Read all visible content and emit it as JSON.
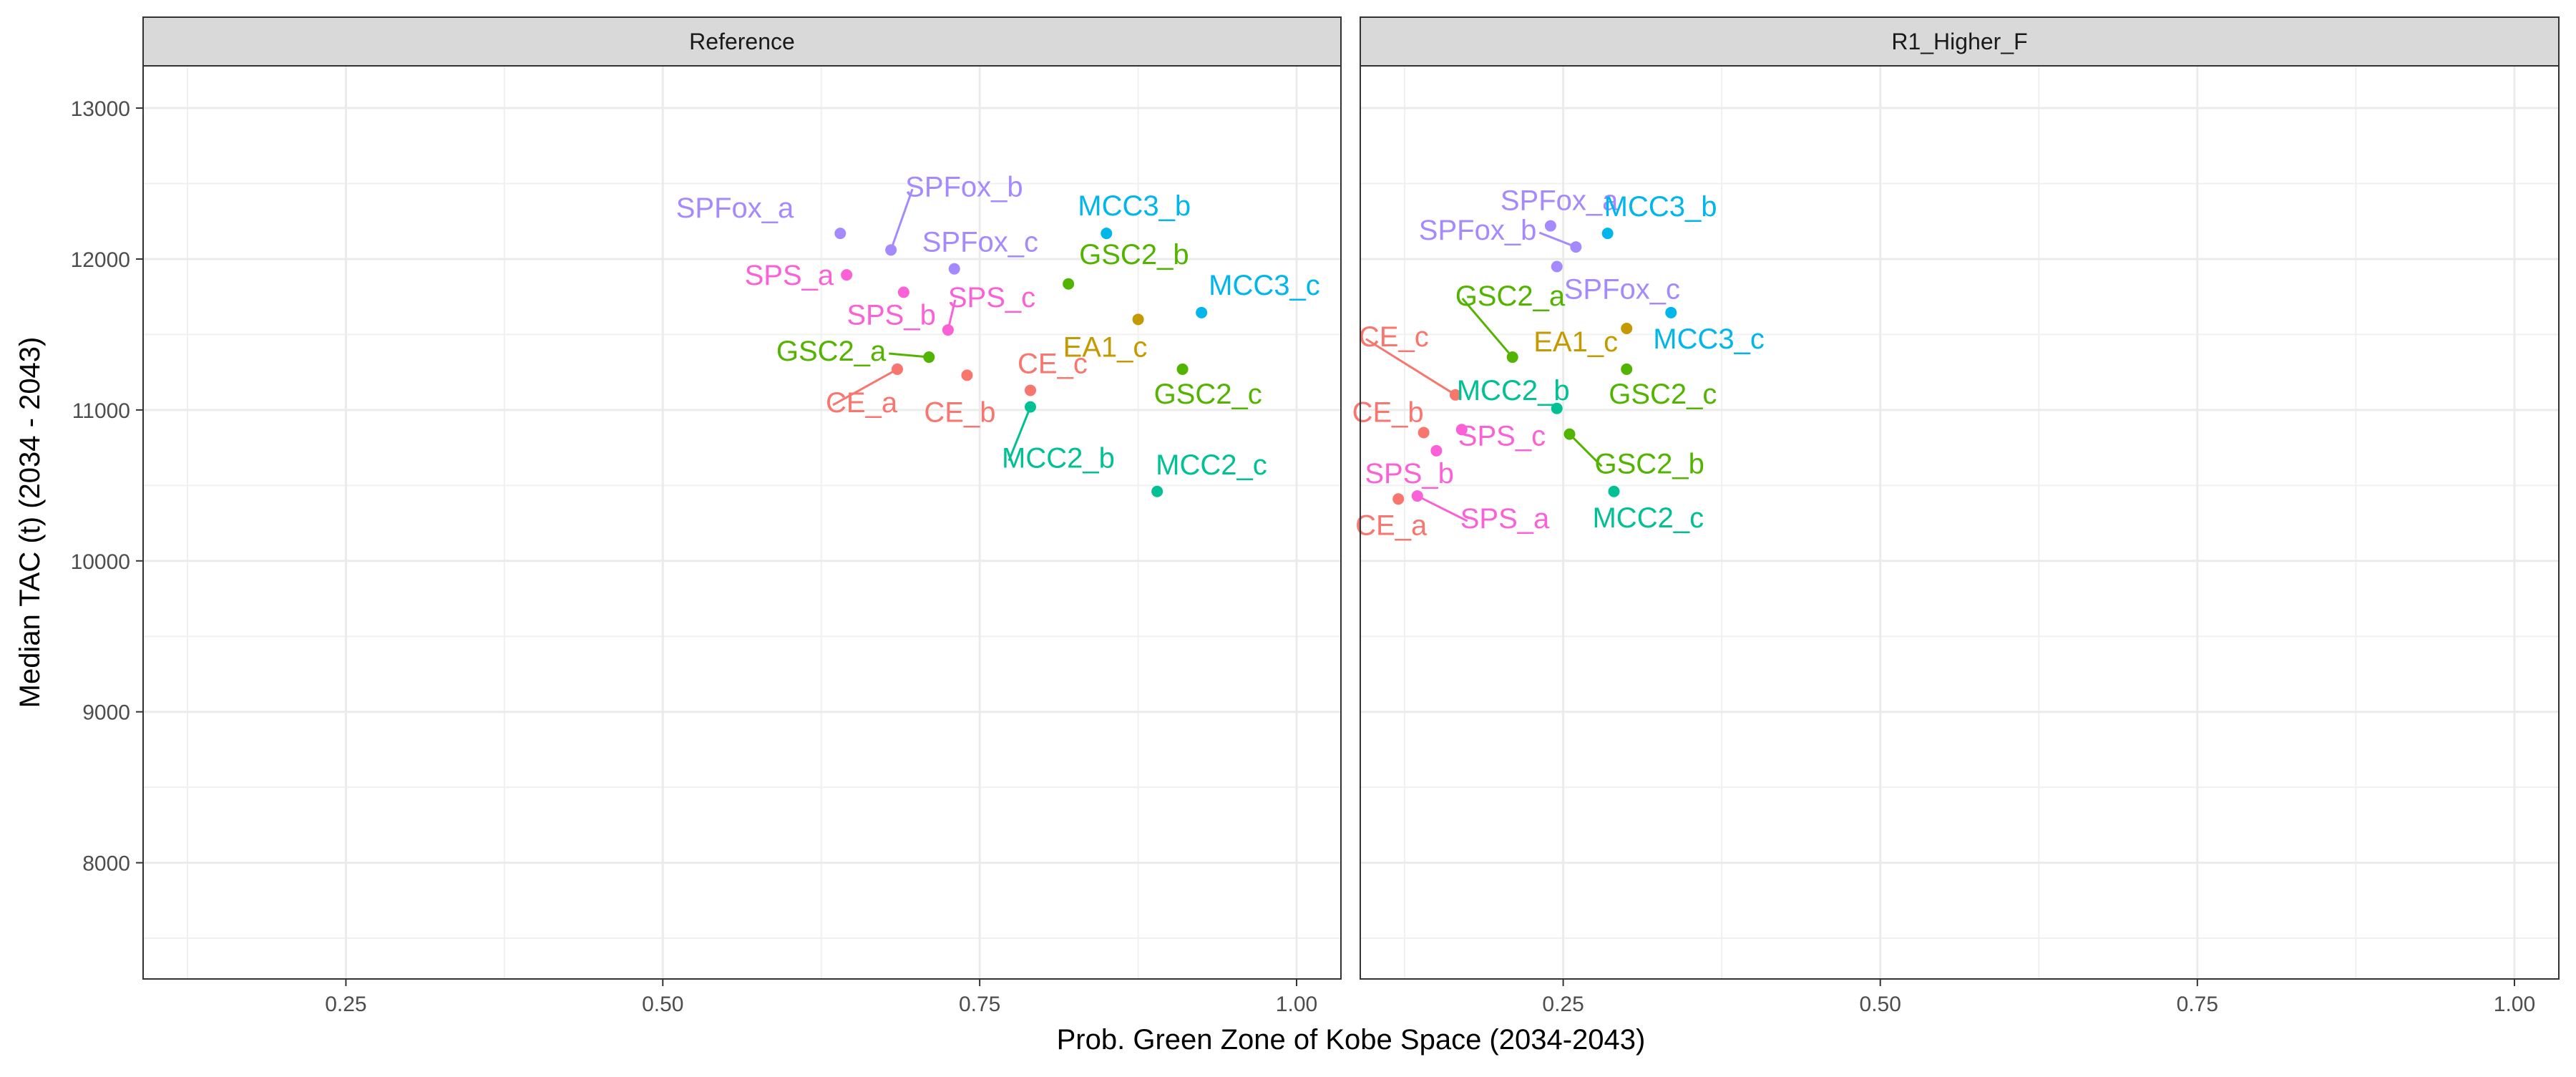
{
  "chart_data": {
    "type": "scatter",
    "xlabel": "Prob. Green Zone of Kobe Space (2034-2043)",
    "ylabel": "Median TAC (t) (2034 - 2043)",
    "xlim": [
      0.09,
      1.035
    ],
    "ylim": [
      7230,
      13280
    ],
    "x_ticks": [
      0.25,
      0.5,
      0.75,
      1.0
    ],
    "x_tick_labels": [
      "0.25",
      "0.50",
      "0.75",
      "1.00"
    ],
    "y_ticks": [
      8000,
      9000,
      10000,
      11000,
      12000,
      13000
    ],
    "y_tick_labels": [
      "8000",
      "9000",
      "10000",
      "11000",
      "12000",
      "13000"
    ],
    "grid": true,
    "legend": "none",
    "series_colors": {
      "CE": "#F8766D",
      "EA1": "#C49A00",
      "GSC2": "#53B400",
      "MCC2": "#00C094",
      "MCC3": "#00B6EB",
      "SPFox": "#A58AFF",
      "SPS": "#FB61D7"
    },
    "panels": [
      {
        "title": "Reference",
        "points": [
          {
            "label": "SPFox_a",
            "group": "SPFox",
            "x": 0.64,
            "y": 12170
          },
          {
            "label": "SPFox_b",
            "group": "SPFox",
            "x": 0.68,
            "y": 12060
          },
          {
            "label": "SPFox_c",
            "group": "SPFox",
            "x": 0.73,
            "y": 11935
          },
          {
            "label": "MCC3_b",
            "group": "MCC3",
            "x": 0.85,
            "y": 12170
          },
          {
            "label": "MCC3_c",
            "group": "MCC3",
            "x": 0.925,
            "y": 11645
          },
          {
            "label": "GSC2_b",
            "group": "GSC2",
            "x": 0.82,
            "y": 11835
          },
          {
            "label": "GSC2_a",
            "group": "GSC2",
            "x": 0.71,
            "y": 11350
          },
          {
            "label": "GSC2_c",
            "group": "GSC2",
            "x": 0.91,
            "y": 11270
          },
          {
            "label": "SPS_a",
            "group": "SPS",
            "x": 0.645,
            "y": 11895
          },
          {
            "label": "SPS_b",
            "group": "SPS",
            "x": 0.69,
            "y": 11780
          },
          {
            "label": "SPS_c",
            "group": "SPS",
            "x": 0.725,
            "y": 11530
          },
          {
            "label": "EA1_c",
            "group": "EA1",
            "x": 0.875,
            "y": 11600
          },
          {
            "label": "CE_a",
            "group": "CE",
            "x": 0.685,
            "y": 11270
          },
          {
            "label": "CE_b",
            "group": "CE",
            "x": 0.74,
            "y": 11230
          },
          {
            "label": "CE_c",
            "group": "CE",
            "x": 0.79,
            "y": 11130
          },
          {
            "label": "MCC2_b",
            "group": "MCC2",
            "x": 0.79,
            "y": 11020
          },
          {
            "label": "MCC2_c",
            "group": "MCC2",
            "x": 0.89,
            "y": 10460
          }
        ]
      },
      {
        "title": "R1_Higher_F",
        "points": [
          {
            "label": "SPFox_a",
            "group": "SPFox",
            "x": 0.24,
            "y": 12220
          },
          {
            "label": "SPFox_b",
            "group": "SPFox",
            "x": 0.26,
            "y": 12080
          },
          {
            "label": "SPFox_c",
            "group": "SPFox",
            "x": 0.245,
            "y": 11950
          },
          {
            "label": "MCC3_b",
            "group": "MCC3",
            "x": 0.285,
            "y": 12170
          },
          {
            "label": "MCC3_c",
            "group": "MCC3",
            "x": 0.335,
            "y": 11645
          },
          {
            "label": "GSC2_a",
            "group": "GSC2",
            "x": 0.21,
            "y": 11350
          },
          {
            "label": "GSC2_c",
            "group": "GSC2",
            "x": 0.3,
            "y": 11270
          },
          {
            "label": "GSC2_b",
            "group": "GSC2",
            "x": 0.255,
            "y": 10840
          },
          {
            "label": "EA1_c",
            "group": "EA1",
            "x": 0.3,
            "y": 11540
          },
          {
            "label": "CE_c",
            "group": "CE",
            "x": 0.165,
            "y": 11100
          },
          {
            "label": "CE_b",
            "group": "CE",
            "x": 0.14,
            "y": 10850
          },
          {
            "label": "CE_a",
            "group": "CE",
            "x": 0.12,
            "y": 10410
          },
          {
            "label": "MCC2_b",
            "group": "MCC2",
            "x": 0.245,
            "y": 11010
          },
          {
            "label": "MCC2_c",
            "group": "MCC2",
            "x": 0.29,
            "y": 10460
          },
          {
            "label": "SPS_c",
            "group": "SPS",
            "x": 0.17,
            "y": 10870
          },
          {
            "label": "SPS_b",
            "group": "SPS",
            "x": 0.15,
            "y": 10730
          },
          {
            "label": "SPS_a",
            "group": "SPS",
            "x": 0.135,
            "y": 10430
          }
        ]
      }
    ]
  }
}
